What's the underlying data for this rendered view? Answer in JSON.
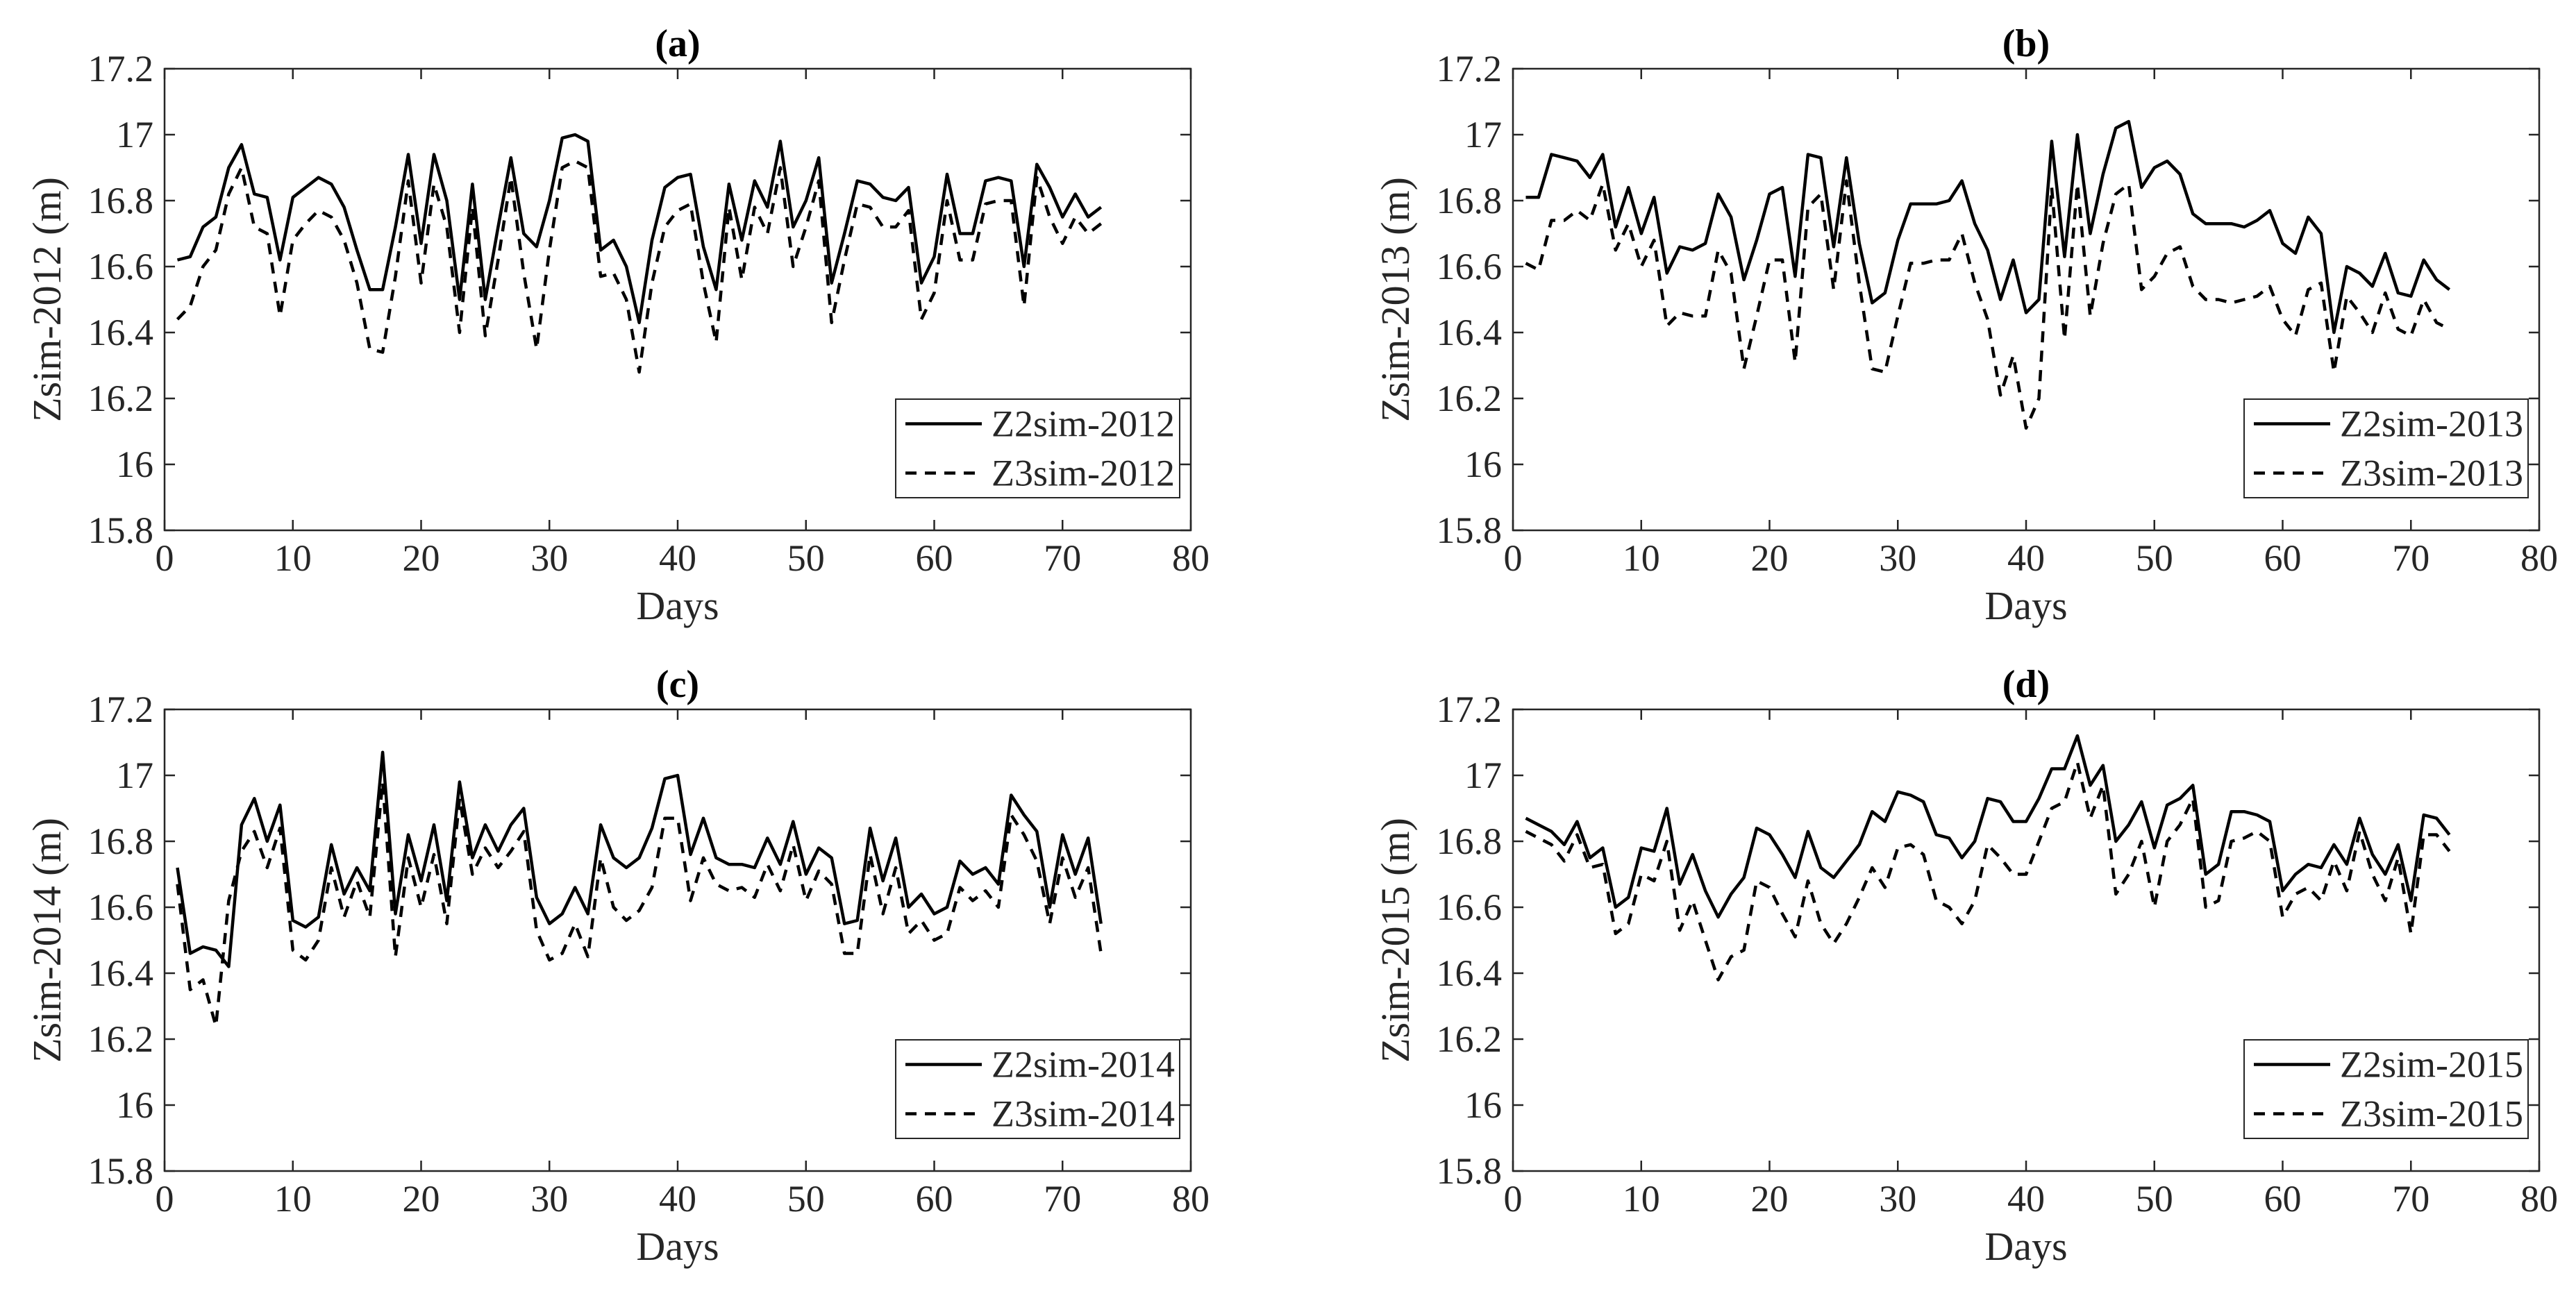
{
  "chart_data": [
    {
      "type": "line",
      "title": "(a)",
      "xlabel": "Days",
      "ylabel": "Zsim-2012 (m)",
      "xlim": [
        0,
        80
      ],
      "xticks": [
        0,
        10,
        20,
        30,
        40,
        50,
        60,
        70,
        80
      ],
      "ylim": [
        15.8,
        17.2
      ],
      "yticks": [
        15.8,
        16,
        16.2,
        16.4,
        16.6,
        16.8,
        17,
        17.2
      ],
      "legend": "lower right",
      "x": [
        1,
        2,
        3,
        4,
        5,
        6,
        7,
        8,
        9,
        10,
        11,
        12,
        13,
        14,
        15,
        16,
        17,
        18,
        19,
        20,
        21,
        22,
        23,
        24,
        25,
        26,
        27,
        28,
        29,
        30,
        31,
        32,
        33,
        34,
        35,
        36,
        37,
        38,
        39,
        40,
        41,
        42,
        43,
        44,
        45,
        46,
        47,
        48,
        49,
        50,
        51,
        52,
        53,
        54,
        55,
        56,
        57,
        58,
        59,
        60,
        61,
        62,
        63,
        64,
        65,
        66,
        67,
        68,
        69,
        70,
        71,
        72,
        73
      ],
      "series": [
        {
          "name": "Z2sim-2012",
          "color": "#000000",
          "linestyle": "solid",
          "values": [
            16.62,
            16.63,
            16.72,
            16.75,
            16.9,
            16.97,
            16.82,
            16.81,
            16.62,
            16.81,
            16.84,
            16.87,
            16.85,
            16.78,
            16.65,
            16.53,
            16.53,
            16.72,
            16.94,
            16.67,
            16.94,
            16.8,
            16.5,
            16.85,
            16.5,
            16.72,
            16.93,
            16.7,
            16.66,
            16.8,
            16.99,
            17.0,
            16.98,
            16.65,
            16.68,
            16.6,
            16.43,
            16.68,
            16.84,
            16.87,
            16.88,
            16.66,
            16.53,
            16.85,
            16.68,
            16.86,
            16.78,
            16.98,
            16.72,
            16.8,
            16.93,
            16.55,
            16.7,
            16.86,
            16.85,
            16.81,
            16.8,
            16.84,
            16.55,
            16.63,
            16.88,
            16.7,
            16.7,
            16.86,
            16.87,
            16.86,
            16.6,
            16.91,
            16.84,
            16.75,
            16.82,
            16.75,
            16.78
          ]
        },
        {
          "name": "Z3sim-2012",
          "color": "#000000",
          "linestyle": "dashed",
          "values": [
            16.44,
            16.48,
            16.6,
            16.65,
            16.82,
            16.9,
            16.72,
            16.7,
            16.45,
            16.68,
            16.73,
            16.77,
            16.75,
            16.68,
            16.55,
            16.35,
            16.34,
            16.57,
            16.86,
            16.55,
            16.85,
            16.72,
            16.4,
            16.78,
            16.39,
            16.62,
            16.87,
            16.58,
            16.35,
            16.65,
            16.9,
            16.92,
            16.9,
            16.57,
            16.58,
            16.5,
            16.28,
            16.55,
            16.72,
            16.77,
            16.79,
            16.55,
            16.37,
            16.78,
            16.56,
            16.78,
            16.7,
            16.9,
            16.6,
            16.72,
            16.86,
            16.43,
            16.62,
            16.79,
            16.78,
            16.72,
            16.72,
            16.77,
            16.44,
            16.52,
            16.8,
            16.62,
            16.62,
            16.79,
            16.8,
            16.8,
            16.48,
            16.87,
            16.75,
            16.67,
            16.75,
            16.7,
            16.73
          ]
        }
      ]
    },
    {
      "type": "line",
      "title": "(b)",
      "xlabel": "Days",
      "ylabel": "Zsim-2013 (m)",
      "xlim": [
        0,
        80
      ],
      "xticks": [
        0,
        10,
        20,
        30,
        40,
        50,
        60,
        70,
        80
      ],
      "ylim": [
        15.8,
        17.2
      ],
      "yticks": [
        15.8,
        16,
        16.2,
        16.4,
        16.6,
        16.8,
        17,
        17.2
      ],
      "legend": "lower right",
      "x": [
        1,
        2,
        3,
        4,
        5,
        6,
        7,
        8,
        9,
        10,
        11,
        12,
        13,
        14,
        15,
        16,
        17,
        18,
        19,
        20,
        21,
        22,
        23,
        24,
        25,
        26,
        27,
        28,
        29,
        30,
        31,
        32,
        33,
        34,
        35,
        36,
        37,
        38,
        39,
        40,
        41,
        42,
        43,
        44,
        45,
        46,
        47,
        48,
        49,
        50,
        51,
        52,
        53,
        54,
        55,
        56,
        57,
        58,
        59,
        60,
        61,
        62,
        63,
        64,
        65,
        66,
        67,
        68,
        69,
        70,
        71,
        72,
        73
      ],
      "series": [
        {
          "name": "Z2sim-2013",
          "color": "#000000",
          "linestyle": "solid",
          "values": [
            16.81,
            16.81,
            16.94,
            16.93,
            16.92,
            16.87,
            16.94,
            16.72,
            16.84,
            16.7,
            16.81,
            16.58,
            16.66,
            16.65,
            16.67,
            16.82,
            16.75,
            16.56,
            16.68,
            16.82,
            16.84,
            16.57,
            16.94,
            16.93,
            16.66,
            16.93,
            16.67,
            16.49,
            16.52,
            16.68,
            16.79,
            16.79,
            16.79,
            16.8,
            16.86,
            16.73,
            16.65,
            16.5,
            16.62,
            16.46,
            16.5,
            16.98,
            16.63,
            17.0,
            16.7,
            16.88,
            17.02,
            17.04,
            16.84,
            16.9,
            16.92,
            16.88,
            16.76,
            16.73,
            16.73,
            16.73,
            16.72,
            16.74,
            16.77,
            16.67,
            16.64,
            16.75,
            16.7,
            16.4,
            16.6,
            16.58,
            16.54,
            16.64,
            16.52,
            16.51,
            16.62,
            16.56,
            16.53
          ]
        },
        {
          "name": "Z3sim-2013",
          "color": "#000000",
          "linestyle": "dashed",
          "values": [
            16.61,
            16.59,
            16.74,
            16.74,
            16.77,
            16.74,
            16.85,
            16.65,
            16.73,
            16.6,
            16.68,
            16.42,
            16.46,
            16.45,
            16.45,
            16.65,
            16.58,
            16.29,
            16.45,
            16.62,
            16.62,
            16.31,
            16.78,
            16.82,
            16.53,
            16.86,
            16.55,
            16.29,
            16.28,
            16.45,
            16.61,
            16.61,
            16.62,
            16.62,
            16.7,
            16.55,
            16.44,
            16.21,
            16.33,
            16.11,
            16.2,
            16.84,
            16.38,
            16.85,
            16.45,
            16.67,
            16.82,
            16.85,
            16.53,
            16.57,
            16.64,
            16.66,
            16.54,
            16.5,
            16.5,
            16.49,
            16.5,
            16.51,
            16.54,
            16.44,
            16.39,
            16.53,
            16.55,
            16.28,
            16.51,
            16.46,
            16.4,
            16.52,
            16.41,
            16.39,
            16.5,
            16.43,
            16.41
          ]
        }
      ]
    },
    {
      "type": "line",
      "title": "(c)",
      "xlabel": "Days",
      "ylabel": "Zsim-2014 (m)",
      "xlim": [
        0,
        80
      ],
      "xticks": [
        0,
        10,
        20,
        30,
        40,
        50,
        60,
        70,
        80
      ],
      "ylim": [
        15.8,
        17.2
      ],
      "yticks": [
        15.8,
        16,
        16.2,
        16.4,
        16.6,
        16.8,
        17,
        17.2
      ],
      "legend": "lower right",
      "x": [
        1,
        2,
        3,
        4,
        5,
        6,
        7,
        8,
        9,
        10,
        11,
        12,
        13,
        14,
        15,
        16,
        17,
        18,
        19,
        20,
        21,
        22,
        23,
        24,
        25,
        26,
        27,
        28,
        29,
        30,
        31,
        32,
        33,
        34,
        35,
        36,
        37,
        38,
        39,
        40,
        41,
        42,
        43,
        44,
        45,
        46,
        47,
        48,
        49,
        50,
        51,
        52,
        53,
        54,
        55,
        56,
        57,
        58,
        59,
        60,
        61,
        62,
        63,
        64,
        65,
        66,
        67,
        68,
        69,
        70,
        71,
        72,
        73
      ],
      "series": [
        {
          "name": "Z2sim-2014",
          "color": "#000000",
          "linestyle": "solid",
          "values": [
            16.72,
            16.46,
            16.48,
            16.47,
            16.42,
            16.85,
            16.93,
            16.8,
            16.91,
            16.56,
            16.54,
            16.57,
            16.79,
            16.64,
            16.72,
            16.65,
            17.07,
            16.58,
            16.82,
            16.68,
            16.85,
            16.62,
            16.98,
            16.75,
            16.85,
            16.77,
            16.85,
            16.9,
            16.63,
            16.55,
            16.58,
            16.66,
            16.58,
            16.85,
            16.75,
            16.72,
            16.75,
            16.84,
            16.99,
            17.0,
            16.76,
            16.87,
            16.75,
            16.73,
            16.73,
            16.72,
            16.81,
            16.73,
            16.86,
            16.7,
            16.78,
            16.75,
            16.55,
            16.56,
            16.84,
            16.68,
            16.81,
            16.6,
            16.64,
            16.58,
            16.6,
            16.74,
            16.7,
            16.72,
            16.67,
            16.94,
            16.88,
            16.83,
            16.6,
            16.82,
            16.7,
            16.81,
            16.55
          ]
        },
        {
          "name": "Z3sim-2014",
          "color": "#000000",
          "linestyle": "dashed",
          "values": [
            16.67,
            16.35,
            16.38,
            16.24,
            16.62,
            16.77,
            16.83,
            16.72,
            16.84,
            16.47,
            16.44,
            16.5,
            16.72,
            16.57,
            16.68,
            16.57,
            16.98,
            16.45,
            16.75,
            16.6,
            16.76,
            16.55,
            16.93,
            16.7,
            16.78,
            16.72,
            16.77,
            16.83,
            16.53,
            16.44,
            16.46,
            16.55,
            16.45,
            16.75,
            16.6,
            16.56,
            16.59,
            16.66,
            16.87,
            16.87,
            16.62,
            16.75,
            16.67,
            16.65,
            16.66,
            16.63,
            16.73,
            16.65,
            16.79,
            16.62,
            16.71,
            16.67,
            16.46,
            16.46,
            16.76,
            16.58,
            16.72,
            16.52,
            16.56,
            16.5,
            16.52,
            16.66,
            16.62,
            16.65,
            16.6,
            16.88,
            16.82,
            16.74,
            16.55,
            16.75,
            16.63,
            16.72,
            16.46
          ]
        }
      ]
    },
    {
      "type": "line",
      "title": "(d)",
      "xlabel": "Days",
      "ylabel": "Zsim-2015 (m)",
      "xlim": [
        0,
        80
      ],
      "xticks": [
        0,
        10,
        20,
        30,
        40,
        50,
        60,
        70,
        80
      ],
      "ylim": [
        15.8,
        17.2
      ],
      "yticks": [
        15.8,
        16,
        16.2,
        16.4,
        16.6,
        16.8,
        17,
        17.2
      ],
      "legend": "lower right",
      "x": [
        1,
        2,
        3,
        4,
        5,
        6,
        7,
        8,
        9,
        10,
        11,
        12,
        13,
        14,
        15,
        16,
        17,
        18,
        19,
        20,
        21,
        22,
        23,
        24,
        25,
        26,
        27,
        28,
        29,
        30,
        31,
        32,
        33,
        34,
        35,
        36,
        37,
        38,
        39,
        40,
        41,
        42,
        43,
        44,
        45,
        46,
        47,
        48,
        49,
        50,
        51,
        52,
        53,
        54,
        55,
        56,
        57,
        58,
        59,
        60,
        61,
        62,
        63,
        64,
        65,
        66,
        67,
        68,
        69,
        70,
        71,
        72,
        73
      ],
      "series": [
        {
          "name": "Z2sim-2015",
          "color": "#000000",
          "linestyle": "solid",
          "values": [
            16.87,
            16.85,
            16.83,
            16.79,
            16.86,
            16.75,
            16.78,
            16.6,
            16.63,
            16.78,
            16.77,
            16.9,
            16.67,
            16.76,
            16.65,
            16.57,
            16.64,
            16.69,
            16.84,
            16.82,
            16.76,
            16.69,
            16.83,
            16.72,
            16.69,
            16.74,
            16.79,
            16.89,
            16.86,
            16.95,
            16.94,
            16.92,
            16.82,
            16.81,
            16.75,
            16.8,
            16.93,
            16.92,
            16.86,
            16.86,
            16.93,
            17.02,
            17.02,
            17.12,
            16.97,
            17.03,
            16.8,
            16.85,
            16.92,
            16.78,
            16.91,
            16.93,
            16.97,
            16.7,
            16.73,
            16.89,
            16.89,
            16.88,
            16.86,
            16.65,
            16.7,
            16.73,
            16.72,
            16.79,
            16.73,
            16.87,
            16.76,
            16.7,
            16.79,
            16.62,
            16.88,
            16.87,
            16.82
          ]
        },
        {
          "name": "Z3sim-2015",
          "color": "#000000",
          "linestyle": "dashed",
          "values": [
            16.83,
            16.81,
            16.79,
            16.74,
            16.82,
            16.72,
            16.73,
            16.52,
            16.55,
            16.7,
            16.68,
            16.8,
            16.53,
            16.62,
            16.5,
            16.38,
            16.45,
            16.47,
            16.68,
            16.66,
            16.58,
            16.51,
            16.68,
            16.55,
            16.49,
            16.55,
            16.63,
            16.72,
            16.66,
            16.78,
            16.79,
            16.76,
            16.62,
            16.6,
            16.55,
            16.62,
            16.79,
            16.75,
            16.7,
            16.7,
            16.8,
            16.9,
            16.92,
            17.04,
            16.87,
            16.97,
            16.64,
            16.7,
            16.8,
            16.6,
            16.8,
            16.85,
            16.93,
            16.6,
            16.62,
            16.8,
            16.81,
            16.83,
            16.8,
            16.57,
            16.64,
            16.66,
            16.62,
            16.74,
            16.65,
            16.83,
            16.7,
            16.62,
            16.75,
            16.52,
            16.82,
            16.82,
            16.77
          ]
        }
      ]
    }
  ]
}
